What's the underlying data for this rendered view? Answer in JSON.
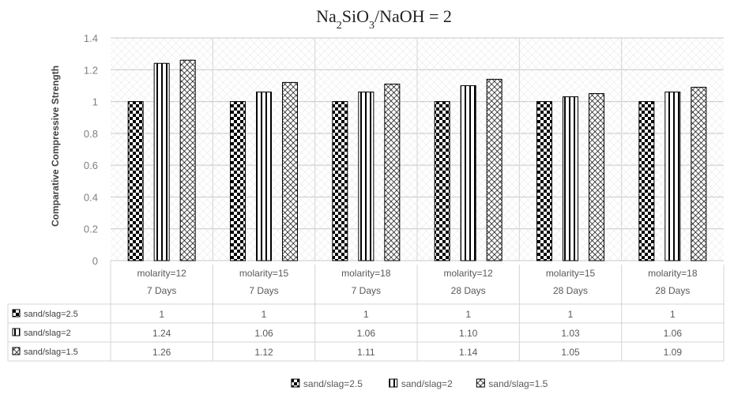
{
  "chart_data": {
    "type": "bar",
    "title_parts": {
      "a": "Na",
      "a_sub": "2",
      "b": "SiO",
      "b_sub": "3",
      "c": "/NaOH = 2"
    },
    "ylabel": "Comparative Compressive Strength",
    "xlabel": "",
    "ylim": [
      0,
      1.4
    ],
    "yticks": [
      "0",
      "0.2",
      "0.4",
      "0.6",
      "0.8",
      "1",
      "1.2",
      "1.4"
    ],
    "categories": [
      [
        "molarity=12",
        "7 Days"
      ],
      [
        "molarity=15",
        "7 Days"
      ],
      [
        "molarity=18",
        "7 Days"
      ],
      [
        "molarity=12",
        "28 Days"
      ],
      [
        "molarity=15",
        "28 Days"
      ],
      [
        "molarity=18",
        "28 Days"
      ]
    ],
    "series": [
      {
        "name": "sand/slag=2.5",
        "values": [
          1,
          1,
          1,
          1,
          1,
          1
        ],
        "labels": [
          "1",
          "1",
          "1",
          "1",
          "1",
          "1"
        ],
        "pattern": "checker"
      },
      {
        "name": "sand/slag=2",
        "values": [
          1.24,
          1.06,
          1.06,
          1.1,
          1.03,
          1.06
        ],
        "labels": [
          "1.24",
          "1.06",
          "1.06",
          "1.10",
          "1.03",
          "1.06"
        ],
        "pattern": "vstripe"
      },
      {
        "name": "sand/slag=1.5",
        "values": [
          1.26,
          1.12,
          1.11,
          1.14,
          1.05,
          1.09
        ],
        "labels": [
          "1.26",
          "1.12",
          "1.11",
          "1.14",
          "1.05",
          "1.09"
        ],
        "pattern": "crosshatch"
      }
    ],
    "grid": true,
    "legend_position": "bottom",
    "data_table": true
  }
}
